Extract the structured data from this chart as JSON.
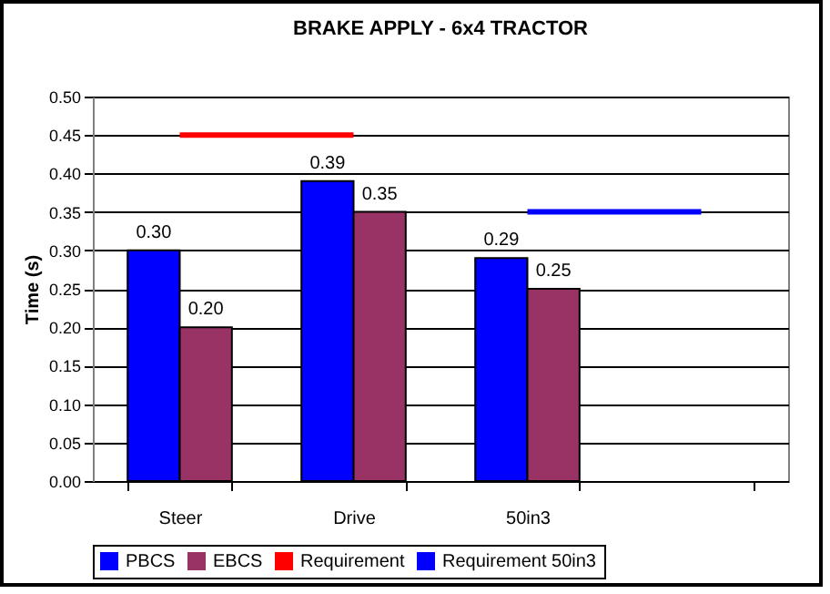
{
  "chart_data": {
    "type": "bar",
    "title": "BRAKE APPLY - 6x4 TRACTOR",
    "ylabel": "Time (s)",
    "categories": [
      "Steer",
      "Drive",
      "50in3",
      null
    ],
    "series": [
      {
        "name": "PBCS",
        "color": "#0000ff",
        "values": [
          0.3,
          0.39,
          0.29,
          null
        ],
        "value_labels": [
          "0.30",
          "0.39",
          "0.29",
          null
        ]
      },
      {
        "name": "EBCS",
        "color": "#993366",
        "values": [
          0.2,
          0.35,
          0.25,
          null
        ],
        "value_labels": [
          "0.20",
          "0.35",
          "0.25",
          null
        ]
      },
      {
        "name": "Requirement",
        "type": "line",
        "color": "#ff0000",
        "values": [
          0.45,
          0.45,
          null,
          null
        ]
      },
      {
        "name": "Requirement 50in3",
        "type": "line",
        "color": "#0000ff",
        "values": [
          null,
          null,
          0.35,
          0.35
        ]
      }
    ],
    "ylim": [
      0,
      0.5
    ],
    "yticks": [
      {
        "value": 0,
        "label": "0.00"
      },
      {
        "value": 0.05,
        "label": "0.05"
      },
      {
        "value": 0.1,
        "label": "0.10"
      },
      {
        "value": 0.15,
        "label": "0.15"
      },
      {
        "value": 0.2,
        "label": "0.20"
      },
      {
        "value": 0.25,
        "label": "0.25"
      },
      {
        "value": 0.3,
        "label": "0.30"
      },
      {
        "value": 0.35,
        "label": "0.35"
      },
      {
        "value": 0.4,
        "label": "0.40"
      },
      {
        "value": 0.45,
        "label": "0.45"
      },
      {
        "value": 0.5,
        "label": "0.50"
      }
    ],
    "grid": "y",
    "legend": "bottom"
  }
}
